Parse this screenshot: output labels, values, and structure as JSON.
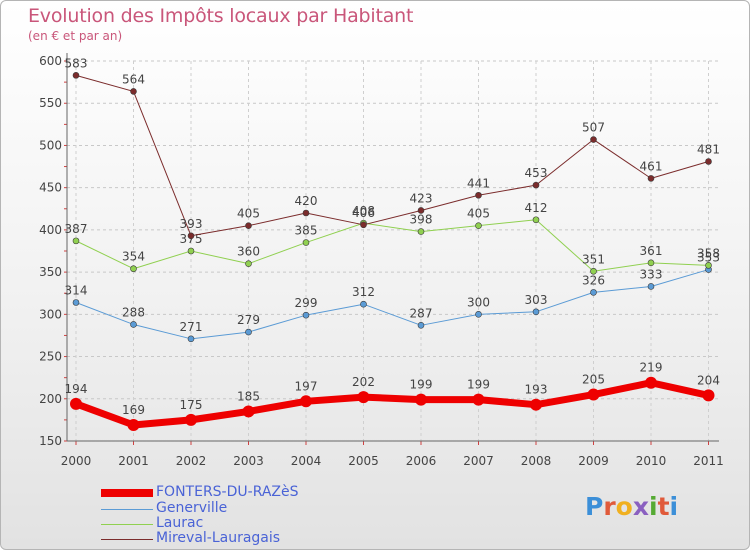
{
  "title": "Evolution des Impôts locaux par Habitant",
  "subtitle": "(en € et par an)",
  "logo_text": "Proxiti",
  "chart_data": {
    "type": "line",
    "title": "Evolution des Impôts locaux par Habitant",
    "subtitle": "(en € et par an)",
    "xlabel": "",
    "ylabel": "",
    "x": [
      "2000",
      "2001",
      "2002",
      "2003",
      "2004",
      "2005",
      "2006",
      "2007",
      "2008",
      "2009",
      "2010",
      "2011"
    ],
    "ylim": [
      150,
      600
    ],
    "yticks": [
      150,
      200,
      250,
      300,
      350,
      400,
      450,
      500,
      550,
      600
    ],
    "grid": "horizontal dashed",
    "legend_position": "bottom-left",
    "series": [
      {
        "name": "FONTERS-DU-RAZèS",
        "color": "#ee0000",
        "width": 7,
        "values": [
          194,
          169,
          175,
          185,
          197,
          202,
          199,
          199,
          193,
          205,
          219,
          204
        ]
      },
      {
        "name": "Generville",
        "color": "#5b9bd5",
        "width": 1,
        "values": [
          314,
          288,
          271,
          279,
          299,
          312,
          287,
          300,
          303,
          326,
          333,
          353
        ]
      },
      {
        "name": "Laurac",
        "color": "#90d050",
        "width": 1,
        "values": [
          387,
          354,
          375,
          360,
          385,
          408,
          398,
          405,
          412,
          351,
          361,
          358
        ]
      },
      {
        "name": "Mireval-Lauragais",
        "color": "#7b2c2c",
        "width": 1,
        "values": [
          583,
          564,
          393,
          405,
          420,
          406,
          423,
          441,
          453,
          507,
          461,
          481
        ]
      }
    ]
  }
}
